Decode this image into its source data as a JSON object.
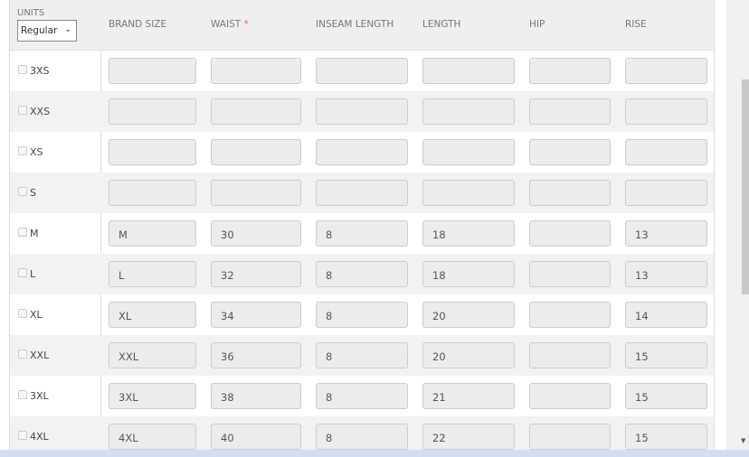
{
  "header": {
    "units_label": "UNITS",
    "units_selected": "Regular",
    "columns": [
      "BRAND SIZE",
      "WAIST",
      "INSEAM LENGTH",
      "LENGTH",
      "HIP",
      "RISE"
    ],
    "required_mark": "*"
  },
  "rows": [
    {
      "size": "3XS",
      "values": [
        "",
        "",
        "",
        "",
        "",
        ""
      ]
    },
    {
      "size": "XXS",
      "values": [
        "",
        "",
        "",
        "",
        "",
        ""
      ]
    },
    {
      "size": "XS",
      "values": [
        "",
        "",
        "",
        "",
        "",
        ""
      ]
    },
    {
      "size": "S",
      "values": [
        "",
        "",
        "",
        "",
        "",
        ""
      ]
    },
    {
      "size": "M",
      "values": [
        "M",
        "30",
        "8",
        "18",
        "",
        "13"
      ]
    },
    {
      "size": "L",
      "values": [
        "L",
        "32",
        "8",
        "18",
        "",
        "13"
      ]
    },
    {
      "size": "XL",
      "values": [
        "XL",
        "34",
        "8",
        "20",
        "",
        "14"
      ]
    },
    {
      "size": "XXL",
      "values": [
        "XXL",
        "36",
        "8",
        "20",
        "",
        "15"
      ]
    },
    {
      "size": "3XL",
      "values": [
        "3XL",
        "38",
        "8",
        "21",
        "",
        "15"
      ]
    },
    {
      "size": "4XL",
      "values": [
        "4XL",
        "40",
        "8",
        "22",
        "",
        "15"
      ]
    }
  ]
}
